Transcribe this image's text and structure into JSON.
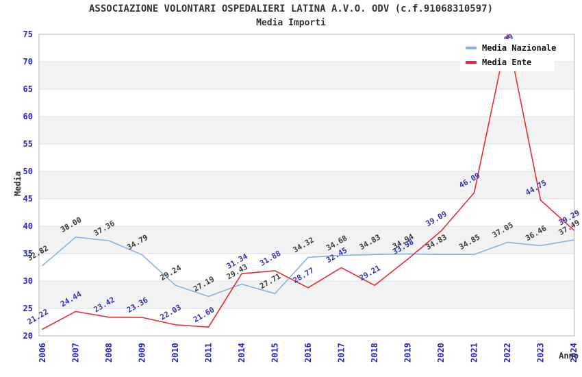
{
  "chart_data": {
    "type": "line",
    "title": "ASSOCIAZIONE VOLONTARI OSPEDALIERI LATINA A.V.O. ODV (c.f.91068310597)",
    "subtitle": "Media Importi",
    "xlabel": "Anno",
    "ylabel": "Media",
    "ylim": [
      20,
      75
    ],
    "ytick_step": 5,
    "grid": "horizontal-bands",
    "legend_position": "top-right",
    "categories": [
      "2006",
      "2007",
      "2008",
      "2009",
      "2010",
      "2011",
      "2014",
      "2015",
      "2016",
      "2017",
      "2018",
      "2019",
      "2020",
      "2021",
      "2022",
      "2023",
      "2024"
    ],
    "series": [
      {
        "name": "Media Nazionale",
        "color": "#85b3e3",
        "label_color": "#3d3d3d",
        "values": [
          32.82,
          38.0,
          37.36,
          34.79,
          29.24,
          27.19,
          29.43,
          27.71,
          34.32,
          34.68,
          34.83,
          34.94,
          34.83,
          34.85,
          37.05,
          36.46,
          37.49
        ]
      },
      {
        "name": "Media Ente",
        "color": "#e02e2e",
        "label_color": "#3333b4",
        "values": [
          21.22,
          24.44,
          23.42,
          23.36,
          22.03,
          21.6,
          31.34,
          31.88,
          28.77,
          32.45,
          29.21,
          33.98,
          39.09,
          46.09,
          74.89,
          44.75,
          39.29
        ]
      }
    ],
    "tick_color": "#2424cc",
    "band_colors": [
      "#ffffff",
      "#f2f2f2"
    ],
    "gridline_color": "#e0e0e0",
    "plot_border_color": "#b5b5b5"
  }
}
